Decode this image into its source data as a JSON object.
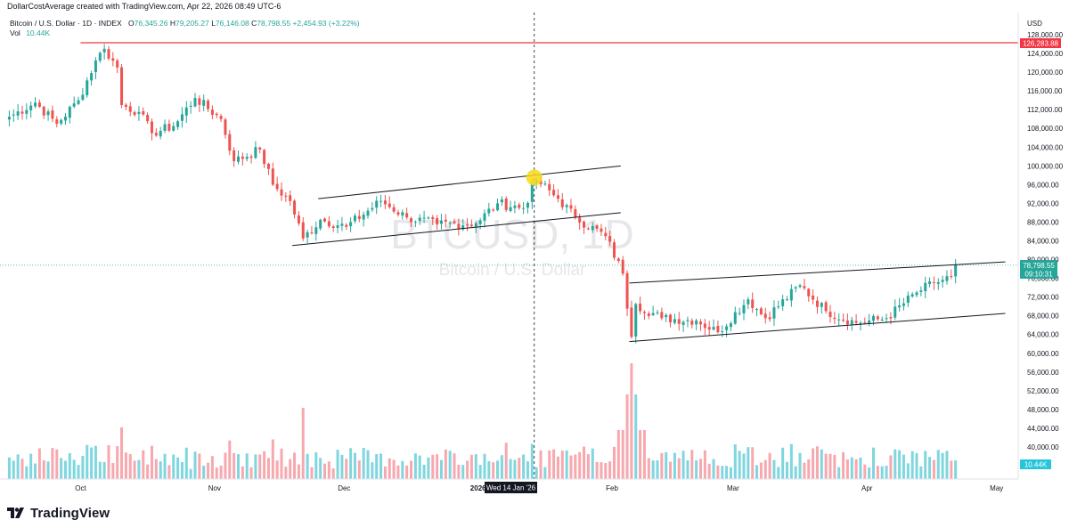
{
  "header": {
    "attribution": "DollarCostAverage created with TradingView.com, Apr 22, 2026 08:49 UTC-6"
  },
  "legend": {
    "symbol": "Bitcoin / U.S. Dollar · 1D · INDEX",
    "ohlc": {
      "open_label": "O",
      "open": "76,345.26",
      "high_label": "H",
      "high": "79,205.27",
      "low_label": "L",
      "low": "76,146.08",
      "close_label": "C",
      "close": "78,798.55",
      "change": "+2,454.93 (+3.22%)"
    },
    "volume_label": "Vol",
    "volume": "10.44K"
  },
  "watermark": {
    "ticker": "BTCUSD, 1D",
    "name": "Bitcoin / U.S. Dollar"
  },
  "axis": {
    "currency": "USD",
    "price_ticks": [
      "128,000.00",
      "124,000.00",
      "120,000.00",
      "116,000.00",
      "112,000.00",
      "108,000.00",
      "104,000.00",
      "100,000.00",
      "96,000.00",
      "92,000.00",
      "88,000.00",
      "84,000.00",
      "80,000.00",
      "76,000.00",
      "72,000.00",
      "68,000.00",
      "64,000.00",
      "60,000.00",
      "56,000.00",
      "52,000.00",
      "48,000.00",
      "44,000.00",
      "40,000.00"
    ],
    "time_ticks": [
      "Oct",
      "Nov",
      "Dec",
      "2026",
      "Feb",
      "Mar",
      "Apr",
      "May"
    ],
    "crosshair_time_label": "Wed 14 Jan '26"
  },
  "badges": {
    "resistance_price": "126,283.88",
    "last_price": "78,798.55",
    "countdown": "09:10:31",
    "volume": "10.44K"
  },
  "footer": {
    "brand": "TradingView"
  },
  "colors": {
    "up": "#26a69a",
    "down": "#ef5350",
    "volume_up": "#7fd6df",
    "volume_down": "#f7a8ae",
    "resistance_line": "#f23645",
    "last_price_badge": "#26a69a",
    "volume_badge": "#26c6da",
    "highlight_circle": "#f7d917"
  },
  "chart_data": {
    "type": "candlestick",
    "symbol": "BTCUSD",
    "interval": "1D",
    "y_scale": "price (USD)",
    "ylim": [
      38000,
      130000
    ],
    "x_range": [
      "2025-09-14",
      "2026-05-06"
    ],
    "last_close": 78798.55,
    "price_anchors": [
      {
        "date": "2025-09-14",
        "close": 110500
      },
      {
        "date": "2025-09-20",
        "close": 113500
      },
      {
        "date": "2025-09-25",
        "close": 109000
      },
      {
        "date": "2025-09-30",
        "close": 114000
      },
      {
        "date": "2025-10-04",
        "close": 122500
      },
      {
        "date": "2025-10-06",
        "close": 125000
      },
      {
        "date": "2025-10-09",
        "close": 121000
      },
      {
        "date": "2025-10-10",
        "close": 113000
      },
      {
        "date": "2025-10-14",
        "close": 111500
      },
      {
        "date": "2025-10-17",
        "close": 107000
      },
      {
        "date": "2025-10-22",
        "close": 108500
      },
      {
        "date": "2025-10-27",
        "close": 114500
      },
      {
        "date": "2025-11-02",
        "close": 110000
      },
      {
        "date": "2025-11-05",
        "close": 101000
      },
      {
        "date": "2025-11-11",
        "close": 103500
      },
      {
        "date": "2025-11-14",
        "close": 96000
      },
      {
        "date": "2025-11-18",
        "close": 92500
      },
      {
        "date": "2025-11-21",
        "close": 84500
      },
      {
        "date": "2025-11-25",
        "close": 88500
      },
      {
        "date": "2025-12-01",
        "close": 87000
      },
      {
        "date": "2025-12-09",
        "close": 92500
      },
      {
        "date": "2025-12-15",
        "close": 89000
      },
      {
        "date": "2025-12-22",
        "close": 87500
      },
      {
        "date": "2025-12-31",
        "close": 87800
      },
      {
        "date": "2026-01-05",
        "close": 92000
      },
      {
        "date": "2026-01-11",
        "close": 91000
      },
      {
        "date": "2026-01-14",
        "close": 97000
      },
      {
        "date": "2026-01-19",
        "close": 93000
      },
      {
        "date": "2026-01-23",
        "close": 89000
      },
      {
        "date": "2026-01-30",
        "close": 85000
      },
      {
        "date": "2026-02-03",
        "close": 77000
      },
      {
        "date": "2026-02-05",
        "close": 63500
      },
      {
        "date": "2026-02-06",
        "close": 70500
      },
      {
        "date": "2026-02-12",
        "close": 67500
      },
      {
        "date": "2026-02-20",
        "close": 67000
      },
      {
        "date": "2026-02-25",
        "close": 64500
      },
      {
        "date": "2026-03-04",
        "close": 71500
      },
      {
        "date": "2026-03-08",
        "close": 67500
      },
      {
        "date": "2026-03-16",
        "close": 74500
      },
      {
        "date": "2026-03-22",
        "close": 69000
      },
      {
        "date": "2026-03-29",
        "close": 66500
      },
      {
        "date": "2026-04-05",
        "close": 67500
      },
      {
        "date": "2026-04-12",
        "close": 73000
      },
      {
        "date": "2026-04-16",
        "close": 75000
      },
      {
        "date": "2026-04-20",
        "close": 76345
      },
      {
        "date": "2026-04-21",
        "close": 78798.55
      }
    ],
    "horizontal_line": {
      "price": 126283.88,
      "label": "126,283.88"
    },
    "channels": [
      {
        "name": "",
        "upper": [
          {
            "date": "2025-11-25",
            "price": 93000
          },
          {
            "date": "2026-02-03",
            "price": 100000
          }
        ],
        "lower": [
          {
            "date": "2025-11-19",
            "price": 83000
          },
          {
            "date": "2026-02-03",
            "price": 90000
          }
        ]
      },
      {
        "name": "",
        "upper": [
          {
            "date": "2026-02-05",
            "price": 75000
          },
          {
            "date": "2026-05-03",
            "price": 79500
          }
        ],
        "lower": [
          {
            "date": "2026-02-05",
            "price": 62500
          },
          {
            "date": "2026-05-03",
            "price": 68500
          }
        ]
      }
    ],
    "highlight_point": {
      "date": "2026-01-14",
      "price": 97500
    },
    "crosshair_date": "2026-01-14",
    "volume": {
      "last": "10.44K",
      "spike_date": "2026-02-05"
    }
  }
}
